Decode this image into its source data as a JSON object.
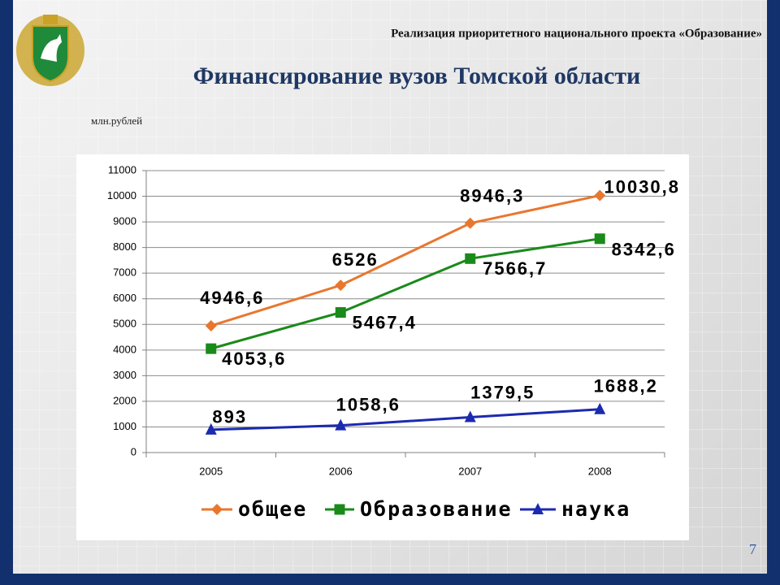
{
  "header": "Реализация приоритетного национального проекта «Образование»",
  "page_number": "7",
  "chart_data": {
    "type": "line",
    "title": "Финансирование вузов Томской области",
    "y_label": "млн.рублей",
    "categories": [
      "2005",
      "2006",
      "2007",
      "2008"
    ],
    "ylim": [
      0,
      11000
    ],
    "yticks": [
      0,
      1000,
      2000,
      3000,
      4000,
      5000,
      6000,
      7000,
      8000,
      9000,
      10000,
      11000
    ],
    "grid": true,
    "legend": "bottom",
    "series": [
      {
        "name": "общее",
        "color": "#e8772e",
        "values": [
          4946.6,
          6526,
          8946.3,
          10030.8
        ],
        "value_labels": [
          "4946,6",
          "6526",
          "8946,3",
          "10030,8"
        ]
      },
      {
        "name": "Образование",
        "color": "#1a8a1a",
        "values": [
          4053.6,
          5467.4,
          7566.7,
          8342.6
        ],
        "value_labels": [
          "4053,6",
          "5467,4",
          "7566,7",
          "8342,6"
        ]
      },
      {
        "name": "наука",
        "color": "#1c2ab0",
        "values": [
          893,
          1058.6,
          1379.5,
          1688.2
        ],
        "value_labels": [
          "893",
          "1058,6",
          "1379,5",
          "1688,2"
        ]
      }
    ]
  }
}
